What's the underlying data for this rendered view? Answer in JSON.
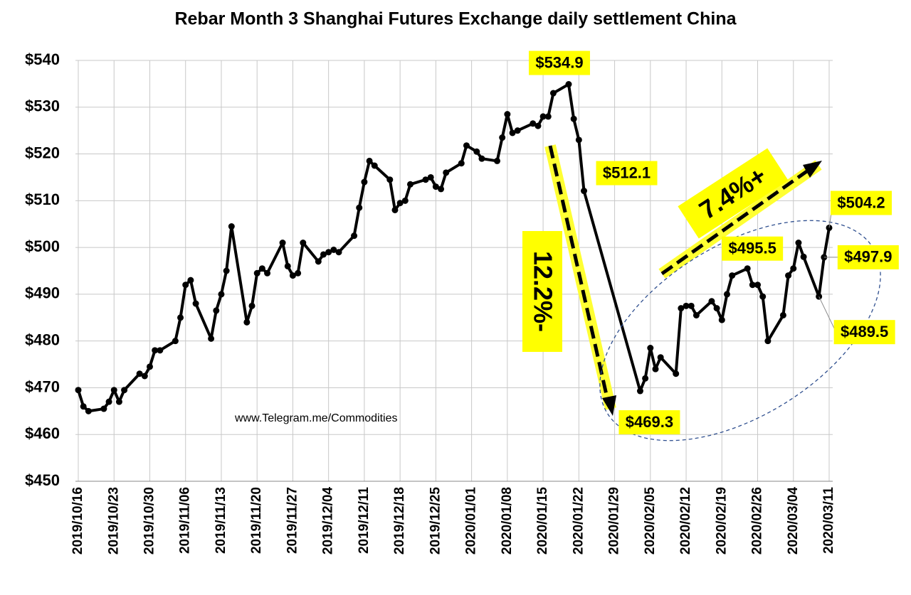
{
  "chart_data": {
    "type": "line",
    "title": "Rebar Month 3 Shanghai Futures Exchange daily settlement China",
    "x": [
      "2019/10/16",
      "2019/10/17",
      "2019/10/18",
      "2019/10/21",
      "2019/10/22",
      "2019/10/23",
      "2019/10/24",
      "2019/10/25",
      "2019/10/28",
      "2019/10/29",
      "2019/10/30",
      "2019/10/31",
      "2019/11/01",
      "2019/11/04",
      "2019/11/05",
      "2019/11/06",
      "2019/11/07",
      "2019/11/08",
      "2019/11/11",
      "2019/11/12",
      "2019/11/13",
      "2019/11/14",
      "2019/11/15",
      "2019/11/18",
      "2019/11/19",
      "2019/11/20",
      "2019/11/21",
      "2019/11/22",
      "2019/11/25",
      "2019/11/26",
      "2019/11/27",
      "2019/11/28",
      "2019/11/29",
      "2019/12/02",
      "2019/12/03",
      "2019/12/04",
      "2019/12/05",
      "2019/12/06",
      "2019/12/09",
      "2019/12/10",
      "2019/12/11",
      "2019/12/12",
      "2019/12/13",
      "2019/12/16",
      "2019/12/17",
      "2019/12/18",
      "2019/12/19",
      "2019/12/20",
      "2019/12/23",
      "2019/12/24",
      "2019/12/25",
      "2019/12/26",
      "2019/12/27",
      "2019/12/30",
      "2019/12/31",
      "2020/01/02",
      "2020/01/03",
      "2020/01/06",
      "2020/01/07",
      "2020/01/08",
      "2020/01/09",
      "2020/01/10",
      "2020/01/13",
      "2020/01/14",
      "2020/01/15",
      "2020/01/16",
      "2020/01/17",
      "2020/01/20",
      "2020/01/21",
      "2020/01/22",
      "2020/01/23",
      "2020/02/03",
      "2020/02/04",
      "2020/02/05",
      "2020/02/06",
      "2020/02/07",
      "2020/02/10",
      "2020/02/11",
      "2020/02/12",
      "2020/02/13",
      "2020/02/14",
      "2020/02/17",
      "2020/02/18",
      "2020/02/19",
      "2020/02/20",
      "2020/02/21",
      "2020/02/24",
      "2020/02/25",
      "2020/02/26",
      "2020/02/27",
      "2020/02/28",
      "2020/03/02",
      "2020/03/03",
      "2020/03/04",
      "2020/03/05",
      "2020/03/06",
      "2020/03/09",
      "2020/03/10",
      "2020/03/11"
    ],
    "series": [
      {
        "color": "#000000",
        "values": [
          469.5,
          466,
          465,
          465.5,
          467,
          469.5,
          467,
          469.5,
          473,
          472.5,
          474.5,
          478,
          478,
          480,
          485,
          492,
          493,
          488,
          480.5,
          486.5,
          490,
          495,
          504.5,
          484,
          487.5,
          494.5,
          495.5,
          494.5,
          501,
          496,
          494,
          494.5,
          501,
          497,
          498.5,
          499,
          499.5,
          499,
          502.5,
          508.5,
          514,
          518.5,
          517.5,
          514.5,
          508,
          509.5,
          510,
          513.5,
          514.5,
          515,
          513,
          512.5,
          516,
          518,
          521.8,
          520.5,
          519,
          518.5,
          523.5,
          528.5,
          524.5,
          525,
          526.5,
          526,
          528,
          528,
          533,
          534.9,
          527.5,
          523,
          512.1,
          469.3,
          472,
          478.5,
          474,
          476.5,
          473,
          487,
          487.5,
          487.5,
          485.5,
          488.5,
          487,
          484.5,
          490,
          494,
          495.5,
          492,
          492,
          489.5,
          480,
          485.5,
          494,
          495.5,
          501,
          498,
          489.5,
          497.9,
          504.2
        ],
        "value_labels": [
          null,
          null,
          null,
          null,
          null,
          null,
          null,
          null,
          null,
          null,
          null,
          null,
          null,
          null,
          null,
          null,
          null,
          null,
          null,
          null,
          null,
          null,
          null,
          null,
          null,
          null,
          null,
          null,
          null,
          null,
          null,
          null,
          null,
          null,
          null,
          null,
          null,
          null,
          null,
          null,
          null,
          null,
          null,
          null,
          null,
          null,
          null,
          null,
          null,
          null,
          null,
          null,
          null,
          null,
          null,
          null,
          null,
          null,
          null,
          null,
          null,
          null,
          null,
          null,
          null,
          null,
          null,
          "$534.9",
          null,
          null,
          "$512.1",
          "$469.3",
          null,
          null,
          null,
          null,
          null,
          null,
          null,
          null,
          null,
          null,
          null,
          null,
          null,
          null,
          "$495.5",
          null,
          null,
          null,
          null,
          null,
          null,
          null,
          null,
          null,
          "$489.5",
          "$497.9",
          "$504.2"
        ]
      }
    ],
    "xlim": [
      "2019/10/16",
      "2020/03/11"
    ],
    "xticks": [
      "2019/10/16",
      "2019/10/23",
      "2019/10/30",
      "2019/11/06",
      "2019/11/13",
      "2019/11/20",
      "2019/11/27",
      "2019/12/04",
      "2019/12/11",
      "2019/12/18",
      "2019/12/25",
      "2020/01/01",
      "2020/01/08",
      "2020/01/15",
      "2020/01/22",
      "2020/01/29",
      "2020/02/05",
      "2020/02/12",
      "2020/02/19",
      "2020/02/26",
      "2020/03/04",
      "2020/03/11"
    ],
    "ylim": [
      450,
      540
    ],
    "yticks": [
      {
        "value": 450,
        "label": "$450"
      },
      {
        "value": 460,
        "label": "$460"
      },
      {
        "value": 470,
        "label": "$470"
      },
      {
        "value": 480,
        "label": "$480"
      },
      {
        "value": 490,
        "label": "$490"
      },
      {
        "value": 500,
        "label": "$500"
      },
      {
        "value": 510,
        "label": "$510"
      },
      {
        "value": 520,
        "label": "$520"
      },
      {
        "value": 530,
        "label": "$530"
      },
      {
        "value": 540,
        "label": "$540"
      }
    ],
    "grid": true,
    "annotations": [
      "12.2%-",
      "7.4%+",
      "www.Telegram.me/Commodities"
    ]
  }
}
